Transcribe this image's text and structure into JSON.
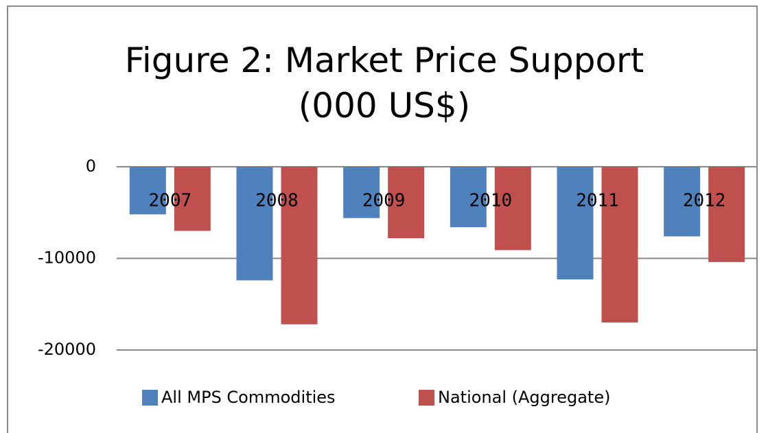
{
  "chart_data": {
    "type": "bar",
    "title": "Figure 2: Market Price Support (000 US$)",
    "categories": [
      "2007",
      "2008",
      "2009",
      "2010",
      "2011",
      "2012"
    ],
    "series": [
      {
        "name": "All MPS Commodities",
        "color": "#4f81bd",
        "values": [
          -5200,
          -12400,
          -5600,
          -6600,
          -12300,
          -7600
        ]
      },
      {
        "name": "National (Aggregate)",
        "color": "#c0504d",
        "values": [
          -7000,
          -17200,
          -7800,
          -9100,
          -17000,
          -10400
        ]
      }
    ],
    "ylim": [
      -20000,
      0
    ],
    "yticks": [
      0,
      -10000,
      -20000
    ],
    "grid": true,
    "legend": "bottom"
  }
}
